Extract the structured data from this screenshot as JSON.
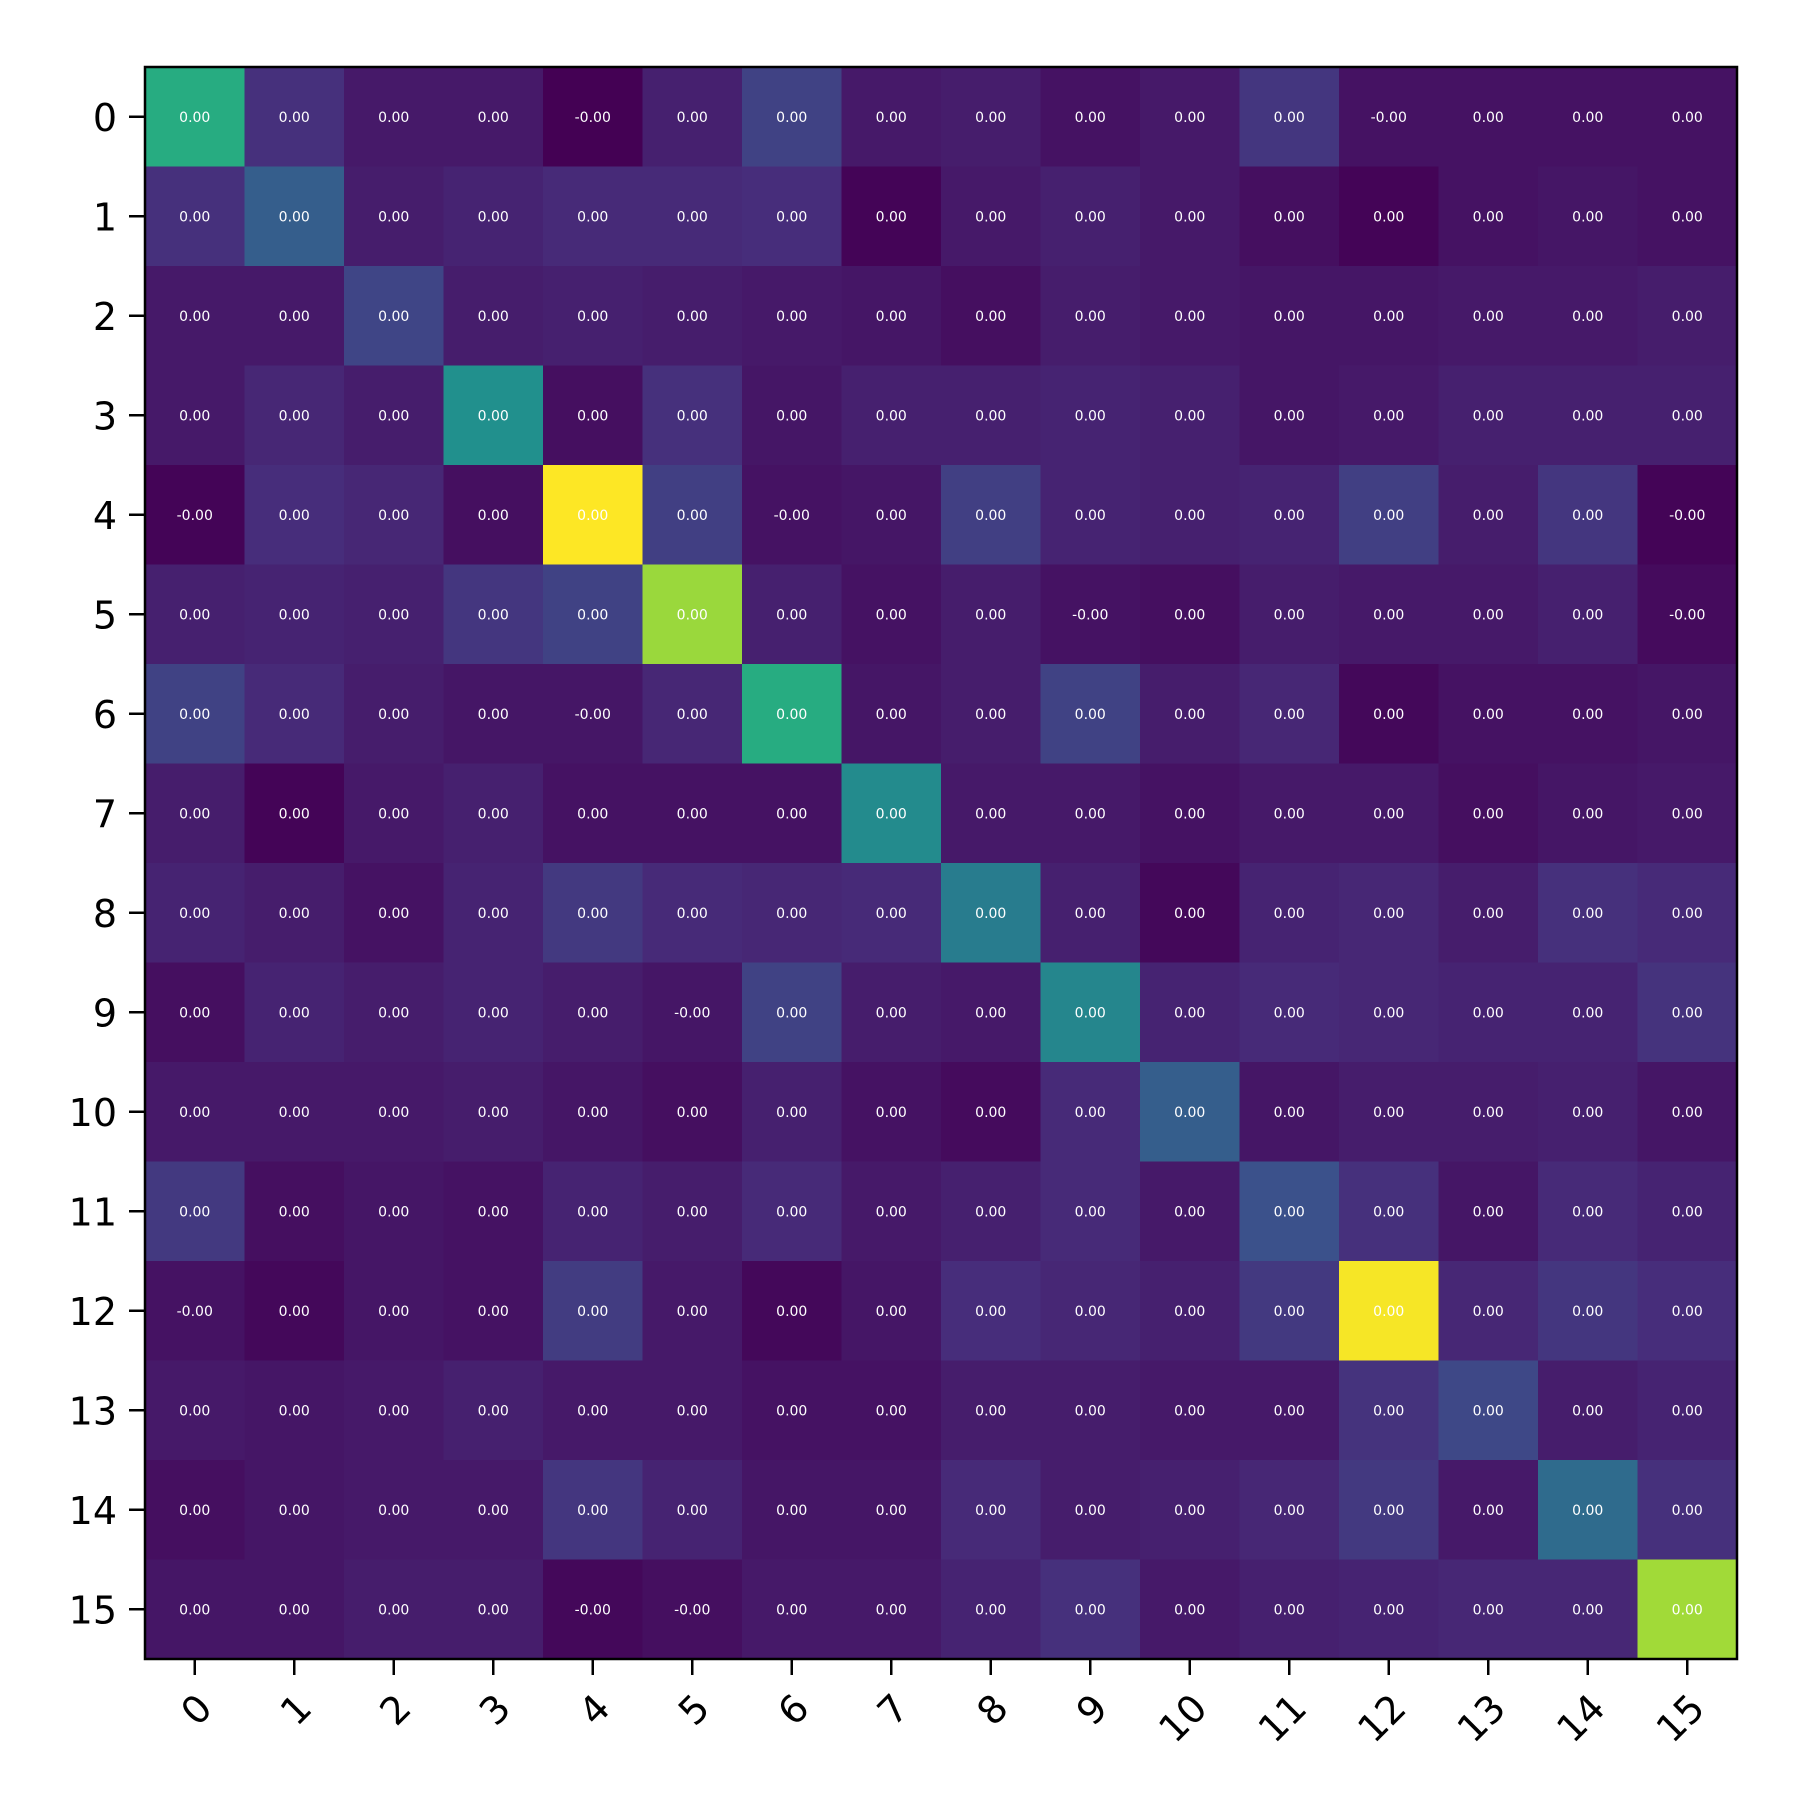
{
  "chart_data": {
    "type": "heatmap",
    "title": "",
    "xlabel": "",
    "ylabel": "",
    "colormap": "viridis",
    "grid": false,
    "x_ticks": [
      "0",
      "1",
      "2",
      "3",
      "4",
      "5",
      "6",
      "7",
      "8",
      "9",
      "10",
      "11",
      "12",
      "13",
      "14",
      "15"
    ],
    "y_ticks": [
      "0",
      "1",
      "2",
      "3",
      "4",
      "5",
      "6",
      "7",
      "8",
      "9",
      "10",
      "11",
      "12",
      "13",
      "14",
      "15"
    ],
    "cell_labels": [
      [
        "0.00",
        "0.00",
        "0.00",
        "0.00",
        "-0.00",
        "0.00",
        "0.00",
        "0.00",
        "0.00",
        "0.00",
        "0.00",
        "0.00",
        "-0.00",
        "0.00",
        "0.00",
        "0.00"
      ],
      [
        "0.00",
        "0.00",
        "0.00",
        "0.00",
        "0.00",
        "0.00",
        "0.00",
        "0.00",
        "0.00",
        "0.00",
        "0.00",
        "0.00",
        "0.00",
        "0.00",
        "0.00",
        "0.00"
      ],
      [
        "0.00",
        "0.00",
        "0.00",
        "0.00",
        "0.00",
        "0.00",
        "0.00",
        "0.00",
        "0.00",
        "0.00",
        "0.00",
        "0.00",
        "0.00",
        "0.00",
        "0.00",
        "0.00"
      ],
      [
        "0.00",
        "0.00",
        "0.00",
        "0.00",
        "0.00",
        "0.00",
        "0.00",
        "0.00",
        "0.00",
        "0.00",
        "0.00",
        "0.00",
        "0.00",
        "0.00",
        "0.00",
        "0.00"
      ],
      [
        "-0.00",
        "0.00",
        "0.00",
        "0.00",
        "0.00",
        "0.00",
        "-0.00",
        "0.00",
        "0.00",
        "0.00",
        "0.00",
        "0.00",
        "0.00",
        "0.00",
        "0.00",
        "-0.00"
      ],
      [
        "0.00",
        "0.00",
        "0.00",
        "0.00",
        "0.00",
        "0.00",
        "0.00",
        "0.00",
        "0.00",
        "-0.00",
        "0.00",
        "0.00",
        "0.00",
        "0.00",
        "0.00",
        "-0.00"
      ],
      [
        "0.00",
        "0.00",
        "0.00",
        "0.00",
        "-0.00",
        "0.00",
        "0.00",
        "0.00",
        "0.00",
        "0.00",
        "0.00",
        "0.00",
        "0.00",
        "0.00",
        "0.00",
        "0.00"
      ],
      [
        "0.00",
        "0.00",
        "0.00",
        "0.00",
        "0.00",
        "0.00",
        "0.00",
        "0.00",
        "0.00",
        "0.00",
        "0.00",
        "0.00",
        "0.00",
        "0.00",
        "0.00",
        "0.00"
      ],
      [
        "0.00",
        "0.00",
        "0.00",
        "0.00",
        "0.00",
        "0.00",
        "0.00",
        "0.00",
        "0.00",
        "0.00",
        "0.00",
        "0.00",
        "0.00",
        "0.00",
        "0.00",
        "0.00"
      ],
      [
        "0.00",
        "0.00",
        "0.00",
        "0.00",
        "0.00",
        "-0.00",
        "0.00",
        "0.00",
        "0.00",
        "0.00",
        "0.00",
        "0.00",
        "0.00",
        "0.00",
        "0.00",
        "0.00"
      ],
      [
        "0.00",
        "0.00",
        "0.00",
        "0.00",
        "0.00",
        "0.00",
        "0.00",
        "0.00",
        "0.00",
        "0.00",
        "0.00",
        "0.00",
        "0.00",
        "0.00",
        "0.00",
        "0.00"
      ],
      [
        "0.00",
        "0.00",
        "0.00",
        "0.00",
        "0.00",
        "0.00",
        "0.00",
        "0.00",
        "0.00",
        "0.00",
        "0.00",
        "0.00",
        "0.00",
        "0.00",
        "0.00",
        "0.00"
      ],
      [
        "-0.00",
        "0.00",
        "0.00",
        "0.00",
        "0.00",
        "0.00",
        "0.00",
        "0.00",
        "0.00",
        "0.00",
        "0.00",
        "0.00",
        "0.00",
        "0.00",
        "0.00",
        "0.00"
      ],
      [
        "0.00",
        "0.00",
        "0.00",
        "0.00",
        "0.00",
        "0.00",
        "0.00",
        "0.00",
        "0.00",
        "0.00",
        "0.00",
        "0.00",
        "0.00",
        "0.00",
        "0.00",
        "0.00"
      ],
      [
        "0.00",
        "0.00",
        "0.00",
        "0.00",
        "0.00",
        "0.00",
        "0.00",
        "0.00",
        "0.00",
        "0.00",
        "0.00",
        "0.00",
        "0.00",
        "0.00",
        "0.00",
        "0.00"
      ],
      [
        "0.00",
        "0.00",
        "0.00",
        "0.00",
        "-0.00",
        "-0.00",
        "0.00",
        "0.00",
        "0.00",
        "0.00",
        "0.00",
        "0.00",
        "0.00",
        "0.00",
        "0.00",
        "0.00"
      ]
    ],
    "color_level_range": [
      0,
      1
    ],
    "color_levels": [
      [
        0.62,
        0.14,
        0.07,
        0.07,
        0.0,
        0.09,
        0.2,
        0.07,
        0.08,
        0.05,
        0.07,
        0.16,
        0.05,
        0.05,
        0.05,
        0.05
      ],
      [
        0.14,
        0.3,
        0.08,
        0.1,
        0.12,
        0.12,
        0.13,
        0.01,
        0.07,
        0.09,
        0.07,
        0.04,
        0.01,
        0.05,
        0.06,
        0.05
      ],
      [
        0.07,
        0.07,
        0.21,
        0.08,
        0.09,
        0.08,
        0.07,
        0.06,
        0.04,
        0.08,
        0.07,
        0.06,
        0.06,
        0.07,
        0.07,
        0.08
      ],
      [
        0.07,
        0.11,
        0.08,
        0.5,
        0.04,
        0.14,
        0.06,
        0.09,
        0.09,
        0.1,
        0.09,
        0.06,
        0.07,
        0.09,
        0.09,
        0.09
      ],
      [
        0.01,
        0.13,
        0.11,
        0.04,
        1.0,
        0.19,
        0.05,
        0.06,
        0.19,
        0.1,
        0.09,
        0.1,
        0.19,
        0.08,
        0.16,
        0.01
      ],
      [
        0.09,
        0.1,
        0.09,
        0.16,
        0.2,
        0.85,
        0.09,
        0.05,
        0.08,
        0.05,
        0.04,
        0.08,
        0.07,
        0.07,
        0.09,
        0.03
      ],
      [
        0.2,
        0.12,
        0.08,
        0.06,
        0.06,
        0.11,
        0.62,
        0.06,
        0.08,
        0.2,
        0.08,
        0.11,
        0.02,
        0.05,
        0.05,
        0.06
      ],
      [
        0.08,
        0.01,
        0.07,
        0.09,
        0.05,
        0.05,
        0.05,
        0.48,
        0.07,
        0.07,
        0.05,
        0.07,
        0.07,
        0.04,
        0.06,
        0.07
      ],
      [
        0.1,
        0.08,
        0.05,
        0.1,
        0.17,
        0.12,
        0.11,
        0.12,
        0.42,
        0.09,
        0.02,
        0.1,
        0.11,
        0.08,
        0.14,
        0.12
      ],
      [
        0.04,
        0.1,
        0.08,
        0.1,
        0.08,
        0.06,
        0.2,
        0.08,
        0.07,
        0.46,
        0.1,
        0.12,
        0.11,
        0.1,
        0.1,
        0.15
      ],
      [
        0.07,
        0.07,
        0.07,
        0.08,
        0.06,
        0.04,
        0.09,
        0.05,
        0.03,
        0.12,
        0.3,
        0.06,
        0.08,
        0.08,
        0.09,
        0.06
      ],
      [
        0.17,
        0.04,
        0.06,
        0.05,
        0.1,
        0.08,
        0.12,
        0.07,
        0.09,
        0.12,
        0.07,
        0.25,
        0.14,
        0.06,
        0.12,
        0.1
      ],
      [
        0.05,
        0.02,
        0.06,
        0.05,
        0.18,
        0.07,
        0.02,
        0.06,
        0.13,
        0.11,
        0.09,
        0.17,
        0.99,
        0.11,
        0.16,
        0.13
      ],
      [
        0.07,
        0.06,
        0.07,
        0.09,
        0.07,
        0.07,
        0.05,
        0.05,
        0.08,
        0.08,
        0.07,
        0.07,
        0.15,
        0.22,
        0.08,
        0.1
      ],
      [
        0.04,
        0.06,
        0.07,
        0.07,
        0.16,
        0.1,
        0.06,
        0.06,
        0.12,
        0.08,
        0.09,
        0.11,
        0.17,
        0.07,
        0.35,
        0.14
      ],
      [
        0.06,
        0.06,
        0.08,
        0.08,
        0.02,
        0.04,
        0.07,
        0.07,
        0.1,
        0.14,
        0.07,
        0.09,
        0.1,
        0.11,
        0.11,
        0.86
      ]
    ]
  }
}
